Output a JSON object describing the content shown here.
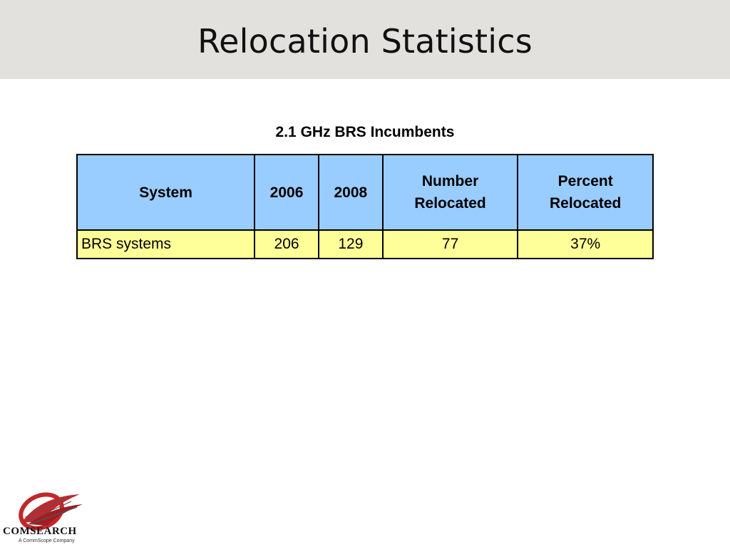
{
  "slide": {
    "title": "Relocation Statistics"
  },
  "table": {
    "caption": "2.1 GHz BRS Incumbents",
    "columns": [
      "System",
      "2006",
      "2008",
      "Number Relocated",
      "Percent Relocated"
    ],
    "rows": [
      [
        "BRS systems",
        "206",
        "129",
        "77",
        "37%"
      ]
    ]
  },
  "logo": {
    "wordmark": "COMSEARCH",
    "tagline": "A CommScope Company"
  },
  "colors": {
    "title_bar": "#e2e1dd",
    "header_fill": "#99ccff",
    "row_fill": "#ffff99",
    "logo_red": "#c0282d"
  }
}
